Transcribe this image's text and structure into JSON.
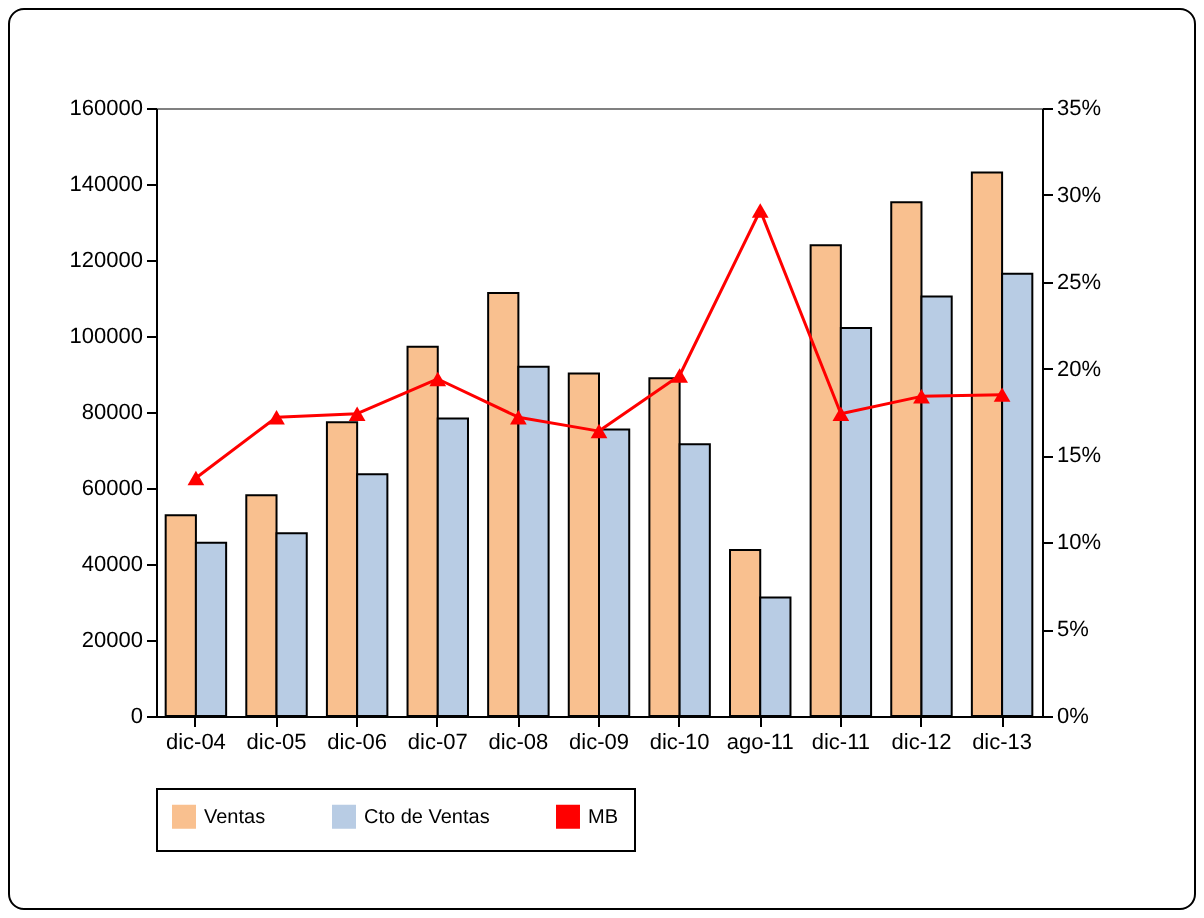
{
  "chart_data": {
    "type": "bar",
    "categories": [
      "dic-04",
      "dic-05",
      "dic-06",
      "dic-07",
      "dic-08",
      "dic-09",
      "dic-10",
      "ago-11",
      "dic-11",
      "dic-12",
      "dic-13"
    ],
    "series": [
      {
        "name": "Ventas",
        "color": "#f9c08f",
        "values": [
          52800,
          58100,
          77300,
          97200,
          111300,
          90100,
          88900,
          43700,
          123900,
          135200,
          143000
        ]
      },
      {
        "name": "Cto de Ventas",
        "color": "#b8cce4",
        "values": [
          45600,
          48100,
          63600,
          78300,
          91900,
          75400,
          71500,
          31200,
          102100,
          110400,
          116400
        ]
      },
      {
        "name": "MB",
        "type": "line",
        "axis": "y2",
        "color": "#ff0000",
        "values": [
          13.7,
          17.2,
          17.4,
          19.4,
          17.2,
          16.4,
          19.6,
          29.1,
          17.4,
          18.4,
          18.5
        ]
      }
    ],
    "ylim": [
      0,
      160000
    ],
    "yticks": [
      0,
      20000,
      40000,
      60000,
      80000,
      100000,
      120000,
      140000,
      160000
    ],
    "y2lim": [
      0,
      35
    ],
    "y2ticks": [
      {
        "value": 0,
        "label": "0%"
      },
      {
        "value": 5,
        "label": "5%"
      },
      {
        "value": 10,
        "label": "10%"
      },
      {
        "value": 15,
        "label": "15%"
      },
      {
        "value": 20,
        "label": "20%"
      },
      {
        "value": 25,
        "label": "25%"
      },
      {
        "value": 30,
        "label": "30%"
      },
      {
        "value": 35,
        "label": "35%"
      }
    ],
    "legend": "bottom",
    "marker": "triangle",
    "grid": false
  }
}
